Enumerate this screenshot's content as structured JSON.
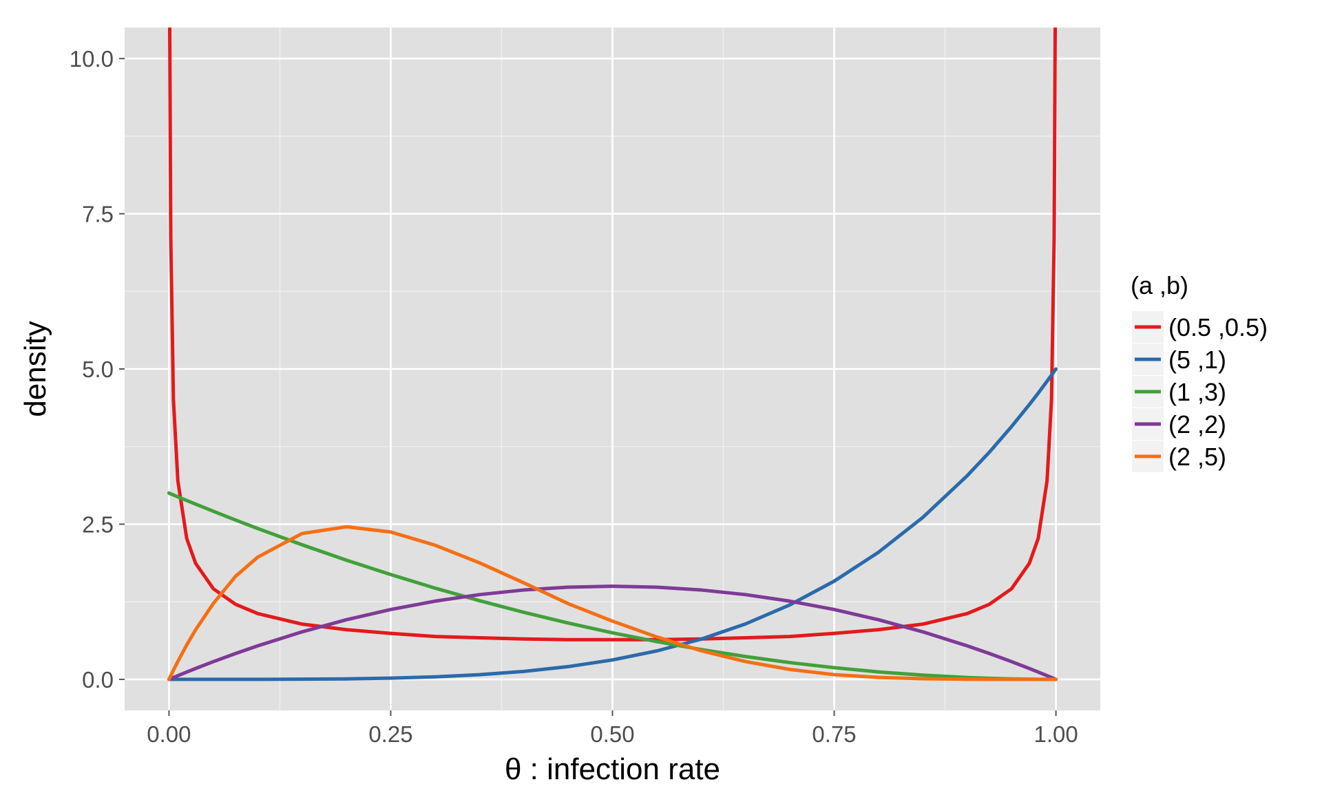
{
  "chart_data": {
    "type": "line",
    "xlabel": "θ : infection rate",
    "ylabel": "density",
    "xlim": [
      -0.05,
      1.05
    ],
    "ylim": [
      -0.5,
      10.5
    ],
    "x_ticks": [
      0,
      0.25,
      0.5,
      0.75,
      1
    ],
    "x_tick_labels": [
      "0.00",
      "0.25",
      "0.50",
      "0.75",
      "1.00"
    ],
    "y_ticks": [
      0,
      2.5,
      5,
      7.5,
      10
    ],
    "y_tick_labels": [
      "0.0",
      "2.5",
      "5.0",
      "7.5",
      "10.0"
    ],
    "grid": true,
    "legend_title": "(a ,b)",
    "legend_position": "right",
    "x": [
      0.0,
      0.001,
      0.002,
      0.005,
      0.01,
      0.02,
      0.03,
      0.05,
      0.075,
      0.1,
      0.15,
      0.2,
      0.25,
      0.3,
      0.35,
      0.4,
      0.45,
      0.5,
      0.55,
      0.6,
      0.65,
      0.7,
      0.75,
      0.8,
      0.85,
      0.9,
      0.925,
      0.95,
      0.97,
      0.98,
      0.99,
      0.995,
      0.998,
      0.999,
      1.0
    ],
    "series": [
      {
        "name": "(0.5 ,0.5)",
        "color": "#e31a1c",
        "values": [
          null,
          10.07,
          7.12,
          4.51,
          3.2,
          2.27,
          1.87,
          1.46,
          1.21,
          1.06,
          0.89,
          0.8,
          0.74,
          0.69,
          0.67,
          0.65,
          0.64,
          0.64,
          0.64,
          0.65,
          0.67,
          0.69,
          0.74,
          0.8,
          0.89,
          1.06,
          1.21,
          1.46,
          1.87,
          2.27,
          3.2,
          4.51,
          7.12,
          10.07,
          null
        ]
      },
      {
        "name": "(5 ,1)",
        "color": "#2b6aaa",
        "values": [
          0.0,
          0.0,
          0.0,
          0.0,
          0.0,
          0.0,
          0.0,
          0.0,
          0.0,
          0.0,
          0.003,
          0.008,
          0.02,
          0.04,
          0.075,
          0.128,
          0.205,
          0.313,
          0.458,
          0.648,
          0.893,
          1.2,
          1.582,
          2.048,
          2.61,
          3.281,
          3.66,
          4.073,
          4.426,
          4.61,
          4.803,
          4.901,
          4.96,
          4.98,
          5.0
        ]
      },
      {
        "name": "(1 ,3)",
        "color": "#41a03a",
        "values": [
          3.0,
          2.994,
          2.988,
          2.97,
          2.94,
          2.881,
          2.823,
          2.708,
          2.567,
          2.43,
          2.168,
          1.92,
          1.688,
          1.47,
          1.268,
          1.08,
          0.908,
          0.75,
          0.608,
          0.48,
          0.368,
          0.27,
          0.188,
          0.12,
          0.068,
          0.03,
          0.017,
          0.008,
          0.003,
          0.001,
          0.0,
          0.0,
          0.0,
          0.0,
          0.0
        ]
      },
      {
        "name": "(2 ,2)",
        "color": "#7f3a97",
        "values": [
          0.0,
          0.006,
          0.012,
          0.03,
          0.059,
          0.118,
          0.175,
          0.285,
          0.416,
          0.54,
          0.765,
          0.96,
          1.125,
          1.26,
          1.365,
          1.44,
          1.485,
          1.5,
          1.485,
          1.44,
          1.365,
          1.26,
          1.125,
          0.96,
          0.765,
          0.54,
          0.416,
          0.285,
          0.175,
          0.118,
          0.059,
          0.03,
          0.012,
          0.006,
          0.0
        ]
      },
      {
        "name": "(2 ,5)",
        "color": "#f46f14",
        "values": [
          0.0,
          0.03,
          0.059,
          0.147,
          0.288,
          0.554,
          0.797,
          1.222,
          1.659,
          1.968,
          2.349,
          2.458,
          2.373,
          2.161,
          1.878,
          1.555,
          1.22,
          0.938,
          0.683,
          0.461,
          0.287,
          0.16,
          0.076,
          0.031,
          0.01,
          0.002,
          0.001,
          0.0,
          0.0,
          0.0,
          0.0,
          0.0,
          0.0,
          0.0,
          0.0
        ]
      }
    ]
  }
}
